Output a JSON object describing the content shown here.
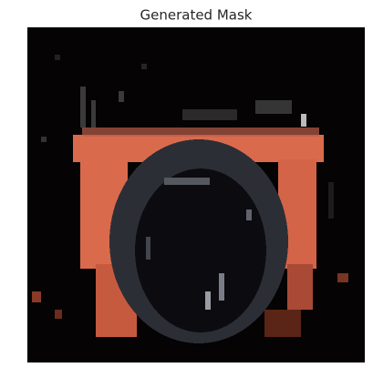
{
  "title": "Generated Mask"
}
